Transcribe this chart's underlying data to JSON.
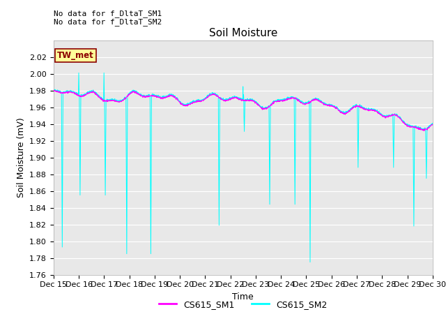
{
  "title": "Soil Moisture",
  "ylabel": "Soil Moisture (mV)",
  "xlabel": "Time",
  "ylim": [
    1.76,
    2.04
  ],
  "yticks": [
    1.76,
    1.78,
    1.8,
    1.82,
    1.84,
    1.86,
    1.88,
    1.9,
    1.92,
    1.94,
    1.96,
    1.98,
    2.0,
    2.02
  ],
  "color_sm1": "#FF00FF",
  "color_sm2": "#00FFFF",
  "bg_color": "#E8E8E8",
  "annotation_text": "No data for f_DltaT_SM1\nNo data for f_DltaT_SM2",
  "tw_met_text": "TW_met",
  "tw_met_bg": "#FFFF99",
  "tw_met_border": "#8B0000",
  "legend_sm1": "CS615_SM1",
  "legend_sm2": "CS615_SM2",
  "title_fontsize": 11,
  "axis_fontsize": 9,
  "tick_fontsize": 8
}
